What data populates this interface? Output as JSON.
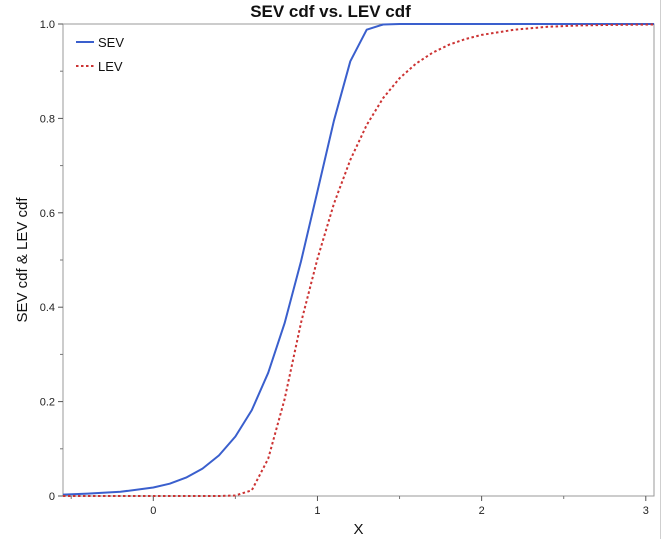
{
  "chart_data": {
    "type": "line",
    "title": "SEV cdf vs. LEV cdf",
    "xlabel": "X",
    "ylabel": "SEV cdf & LEV cdf",
    "xlim": [
      -0.55,
      3.05
    ],
    "ylim": [
      0,
      1.0
    ],
    "xticks": [
      "0",
      "1",
      "2",
      "3"
    ],
    "yticks": [
      "0",
      "0.2",
      "0.4",
      "0.6",
      "0.8",
      "1.0"
    ],
    "legend_position": "top-left",
    "grid": false,
    "series": [
      {
        "name": "SEV",
        "color": "#3a5fcd",
        "dash": "solid",
        "x": [
          -0.55,
          -0.4,
          -0.2,
          0,
          0.1,
          0.2,
          0.3,
          0.4,
          0.5,
          0.6,
          0.7,
          0.8,
          0.9,
          1.0,
          1.1,
          1.2,
          1.3,
          1.4,
          1.5,
          1.6,
          1.8,
          2.0,
          2.5,
          3.05
        ],
        "y": [
          0.003,
          0.005,
          0.009,
          0.018,
          0.026,
          0.039,
          0.058,
          0.086,
          0.126,
          0.182,
          0.261,
          0.366,
          0.497,
          0.646,
          0.795,
          0.921,
          0.988,
          0.999,
          1.0,
          1.0,
          1.0,
          1.0,
          1.0,
          1.0
        ]
      },
      {
        "name": "LEV",
        "color": "#cc3333",
        "dash": "dotted",
        "x": [
          -0.55,
          0,
          0.4,
          0.5,
          0.6,
          0.7,
          0.8,
          0.9,
          1.0,
          1.1,
          1.2,
          1.3,
          1.4,
          1.5,
          1.6,
          1.7,
          1.8,
          1.9,
          2.0,
          2.2,
          2.4,
          2.6,
          2.8,
          3.05
        ],
        "y": [
          0.0,
          0.0,
          0.0,
          0.001,
          0.012,
          0.079,
          0.205,
          0.367,
          0.503,
          0.619,
          0.712,
          0.786,
          0.843,
          0.885,
          0.916,
          0.939,
          0.956,
          0.968,
          0.977,
          0.988,
          0.994,
          0.997,
          0.998,
          0.999
        ]
      }
    ]
  }
}
